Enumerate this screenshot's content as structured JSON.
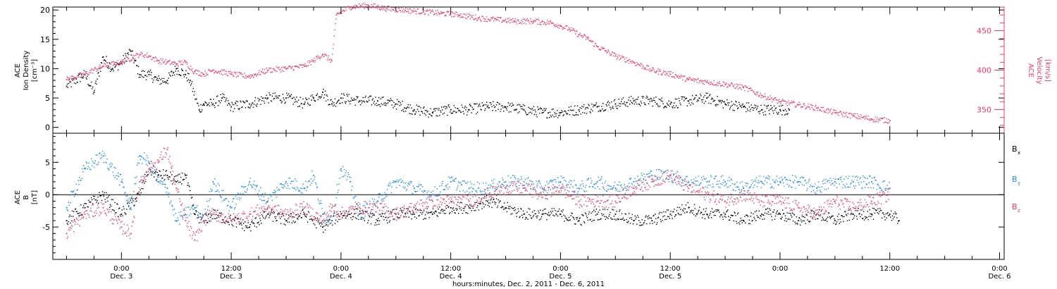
{
  "chart_data": [
    {
      "type": "scatter",
      "panel": "top",
      "ylabel_left": [
        "ACE",
        "Ion Density",
        "[cm⁻³]"
      ],
      "ylabel_right": [
        "ACE",
        "Velocity",
        "[km/s]"
      ],
      "ylim_left": [
        -1,
        20.5
      ],
      "ylim_right": [
        320,
        480
      ],
      "yticks_left": [
        "0",
        "5",
        "10",
        "15",
        "20"
      ],
      "yticks_left_values": [
        0,
        5,
        10,
        15,
        20
      ],
      "yticks_right": [
        "350",
        "400",
        "450"
      ],
      "yticks_right_values": [
        350,
        400,
        450
      ],
      "series": [
        {
          "key": "density",
          "axis": "left",
          "color": "#000000",
          "points": [
            [
              -6,
              7
            ],
            [
              -4,
              9
            ],
            [
              -3,
              6
            ],
            [
              -2,
              12
            ],
            [
              -1,
              10
            ],
            [
              0,
              11
            ],
            [
              1,
              13
            ],
            [
              2,
              9
            ],
            [
              3,
              9
            ],
            [
              4,
              8
            ],
            [
              5,
              8
            ],
            [
              6,
              10
            ],
            [
              7,
              9
            ],
            [
              7.5,
              8
            ],
            [
              8.5,
              3
            ],
            [
              9,
              4
            ],
            [
              10,
              4
            ],
            [
              11,
              5
            ],
            [
              12,
              3.5
            ],
            [
              14,
              4
            ],
            [
              16,
              5
            ],
            [
              18,
              5
            ],
            [
              20,
              4
            ],
            [
              21,
              5
            ],
            [
              22,
              6
            ],
            [
              23,
              4
            ],
            [
              24,
              5
            ],
            [
              26,
              4.5
            ],
            [
              28,
              4.5
            ],
            [
              30,
              4
            ],
            [
              32,
              3
            ],
            [
              34,
              2.5
            ],
            [
              36,
              3
            ],
            [
              38,
              3
            ],
            [
              40,
              3.5
            ],
            [
              42,
              3.5
            ],
            [
              44,
              3
            ],
            [
              46,
              2.5
            ],
            [
              48,
              2.5
            ],
            [
              50,
              3
            ],
            [
              52,
              3.5
            ],
            [
              54,
              4
            ],
            [
              56,
              4.5
            ],
            [
              58,
              4.5
            ],
            [
              60,
              4
            ],
            [
              62,
              4.5
            ],
            [
              64,
              5
            ],
            [
              66,
              4
            ],
            [
              68,
              3.5
            ],
            [
              70,
              3
            ],
            [
              72,
              3
            ],
            [
              73,
              3
            ]
          ]
        },
        {
          "key": "velocity",
          "axis": "right",
          "color": "#ef3b68",
          "points": [
            [
              -6,
              388
            ],
            [
              -4,
              395
            ],
            [
              -2,
              405
            ],
            [
              0,
              410
            ],
            [
              2,
              420
            ],
            [
              3,
              418
            ],
            [
              4,
              412
            ],
            [
              5,
              410
            ],
            [
              6,
              408
            ],
            [
              7,
              410
            ],
            [
              8,
              398
            ],
            [
              9,
              395
            ],
            [
              10,
              400
            ],
            [
              12,
              395
            ],
            [
              14,
              392
            ],
            [
              16,
              400
            ],
            [
              18,
              402
            ],
            [
              20,
              405
            ],
            [
              21,
              412
            ],
            [
              22,
              420
            ],
            [
              23,
              412
            ],
            [
              23.5,
              470
            ],
            [
              25,
              480
            ],
            [
              27,
              482
            ],
            [
              29,
              478
            ],
            [
              31,
              476
            ],
            [
              33,
              474
            ],
            [
              35,
              472
            ],
            [
              37,
              470
            ],
            [
              39,
              466
            ],
            [
              41,
              464
            ],
            [
              43,
              462
            ],
            [
              45,
              462
            ],
            [
              47,
              460
            ],
            [
              48,
              456
            ],
            [
              49,
              452
            ],
            [
              50,
              445
            ],
            [
              51,
              440
            ],
            [
              52,
              430
            ],
            [
              54,
              418
            ],
            [
              56,
              410
            ],
            [
              58,
              400
            ],
            [
              60,
              395
            ],
            [
              62,
              388
            ],
            [
              64,
              385
            ],
            [
              66,
              382
            ],
            [
              68,
              378
            ],
            [
              70,
              368
            ],
            [
              72,
              360
            ],
            [
              74,
              356
            ],
            [
              76,
              352
            ],
            [
              78,
              346
            ],
            [
              80,
              342
            ],
            [
              82,
              338
            ],
            [
              84,
              336
            ]
          ]
        }
      ]
    },
    {
      "type": "scatter",
      "panel": "bottom",
      "ylabel_left": [
        "ACE",
        "B",
        "[nT]"
      ],
      "ylim": [
        -10,
        9.5
      ],
      "yticks": [
        "-5",
        "0",
        "5"
      ],
      "yticks_values": [
        -5,
        0,
        5
      ],
      "zero_line": true,
      "legend": [
        {
          "label": "B",
          "sub": "x",
          "color": "#000000"
        },
        {
          "label": "B",
          "sub": "y",
          "color": "#1e8be6"
        },
        {
          "label": "B",
          "sub": "z",
          "color": "#ef3b68"
        }
      ],
      "series": [
        {
          "key": "Bx",
          "color": "#000000",
          "points": [
            [
              -6,
              -4
            ],
            [
              -4,
              -2
            ],
            [
              -2,
              0
            ],
            [
              0,
              -3
            ],
            [
              2,
              0
            ],
            [
              3,
              4
            ],
            [
              4,
              3
            ],
            [
              5,
              3
            ],
            [
              6,
              2
            ],
            [
              7,
              3
            ],
            [
              8,
              -3
            ],
            [
              9,
              -4
            ],
            [
              10,
              -3
            ],
            [
              12,
              -4
            ],
            [
              14,
              -5
            ],
            [
              16,
              -3
            ],
            [
              18,
              -4
            ],
            [
              20,
              -3
            ],
            [
              22,
              -5
            ],
            [
              23,
              -4
            ],
            [
              24,
              -3
            ],
            [
              26,
              -3
            ],
            [
              28,
              -4
            ],
            [
              30,
              -3
            ],
            [
              32,
              -3
            ],
            [
              34,
              -3
            ],
            [
              36,
              -2
            ],
            [
              38,
              -2
            ],
            [
              40,
              -1
            ],
            [
              42,
              -2
            ],
            [
              44,
              -3
            ],
            [
              46,
              -3
            ],
            [
              48,
              -3
            ],
            [
              50,
              -4
            ],
            [
              52,
              -3
            ],
            [
              54,
              -3
            ],
            [
              56,
              -4
            ],
            [
              58,
              -4
            ],
            [
              60,
              -3
            ],
            [
              62,
              -2
            ],
            [
              64,
              -3
            ],
            [
              66,
              -3
            ],
            [
              68,
              -4
            ],
            [
              70,
              -3
            ],
            [
              72,
              -3
            ],
            [
              74,
              -4
            ],
            [
              76,
              -3
            ],
            [
              78,
              -4
            ],
            [
              80,
              -3
            ],
            [
              82,
              -3
            ],
            [
              84,
              -3
            ],
            [
              85,
              -4
            ]
          ]
        },
        {
          "key": "By",
          "color": "#1e8be6",
          "points": [
            [
              -6,
              -2
            ],
            [
              -4,
              4
            ],
            [
              -2,
              6
            ],
            [
              0,
              2
            ],
            [
              1,
              -2
            ],
            [
              2,
              6
            ],
            [
              3,
              5
            ],
            [
              4,
              2
            ],
            [
              5,
              1
            ],
            [
              6,
              -4
            ],
            [
              7,
              -3
            ],
            [
              8,
              -2
            ],
            [
              9,
              -4
            ],
            [
              10,
              2
            ],
            [
              12,
              -2
            ],
            [
              14,
              2
            ],
            [
              16,
              -1
            ],
            [
              18,
              2
            ],
            [
              20,
              1
            ],
            [
              21,
              3
            ],
            [
              22,
              -3
            ],
            [
              23,
              -4
            ],
            [
              24,
              4
            ],
            [
              25,
              2
            ],
            [
              26,
              -3
            ],
            [
              28,
              -1
            ],
            [
              30,
              2
            ],
            [
              32,
              1
            ],
            [
              34,
              0
            ],
            [
              36,
              2
            ],
            [
              38,
              1
            ],
            [
              40,
              1
            ],
            [
              42,
              2
            ],
            [
              44,
              2
            ],
            [
              46,
              1
            ],
            [
              48,
              2
            ],
            [
              50,
              1
            ],
            [
              52,
              2
            ],
            [
              54,
              1
            ],
            [
              56,
              2
            ],
            [
              58,
              3
            ],
            [
              60,
              3
            ],
            [
              62,
              2
            ],
            [
              64,
              2
            ],
            [
              66,
              2
            ],
            [
              68,
              1
            ],
            [
              70,
              2
            ],
            [
              72,
              2
            ],
            [
              74,
              2
            ],
            [
              76,
              1
            ],
            [
              78,
              2
            ],
            [
              80,
              2
            ],
            [
              82,
              2
            ],
            [
              84,
              1
            ]
          ]
        },
        {
          "key": "Bz",
          "color": "#ef3b68",
          "points": [
            [
              -6,
              -6
            ],
            [
              -4,
              -3
            ],
            [
              -2,
              -2
            ],
            [
              0,
              -5
            ],
            [
              1,
              -6
            ],
            [
              2,
              2
            ],
            [
              3,
              4
            ],
            [
              4,
              5
            ],
            [
              5,
              7
            ],
            [
              6,
              1
            ],
            [
              7,
              -4
            ],
            [
              8,
              -7
            ],
            [
              9,
              -4
            ],
            [
              10,
              -3
            ],
            [
              12,
              -4
            ],
            [
              14,
              -3
            ],
            [
              16,
              -2
            ],
            [
              18,
              -3
            ],
            [
              20,
              -2
            ],
            [
              22,
              -4
            ],
            [
              23,
              -2
            ],
            [
              24,
              -3
            ],
            [
              26,
              -2
            ],
            [
              28,
              -2
            ],
            [
              30,
              -3
            ],
            [
              32,
              -2
            ],
            [
              34,
              -1
            ],
            [
              36,
              -1
            ],
            [
              38,
              -1
            ],
            [
              40,
              0
            ],
            [
              42,
              1
            ],
            [
              44,
              1
            ],
            [
              46,
              0
            ],
            [
              48,
              1
            ],
            [
              50,
              -1
            ],
            [
              52,
              -1
            ],
            [
              54,
              -1
            ],
            [
              56,
              1
            ],
            [
              58,
              2
            ],
            [
              60,
              3
            ],
            [
              62,
              1
            ],
            [
              64,
              0
            ],
            [
              66,
              -1
            ],
            [
              68,
              0
            ],
            [
              70,
              -1
            ],
            [
              72,
              -1
            ],
            [
              74,
              -2
            ],
            [
              76,
              -3
            ],
            [
              78,
              -1
            ],
            [
              80,
              -2
            ],
            [
              82,
              -1
            ],
            [
              84,
              0
            ]
          ]
        }
      ]
    }
  ],
  "x_axis": {
    "xlim": [
      -7.5,
      96.5
    ],
    "tick_values": [
      0,
      12,
      24,
      36,
      48,
      60,
      72,
      84,
      96
    ],
    "tick_labels": [
      "0:00",
      "12:00",
      "0:00",
      "12:00",
      "0:00",
      "12:00",
      "0:00",
      "12:00",
      "0:00"
    ],
    "date_labels": [
      "Dec. 3",
      "Dec. 3",
      "Dec. 4",
      "Dec. 4",
      "Dec. 5",
      "Dec. 5",
      "Dec. 6"
    ],
    "date_values": [
      0,
      12,
      24,
      36,
      48,
      60,
      96
    ],
    "title": "hours:minutes, Dec.  2, 2011 - Dec.  6, 2011"
  }
}
